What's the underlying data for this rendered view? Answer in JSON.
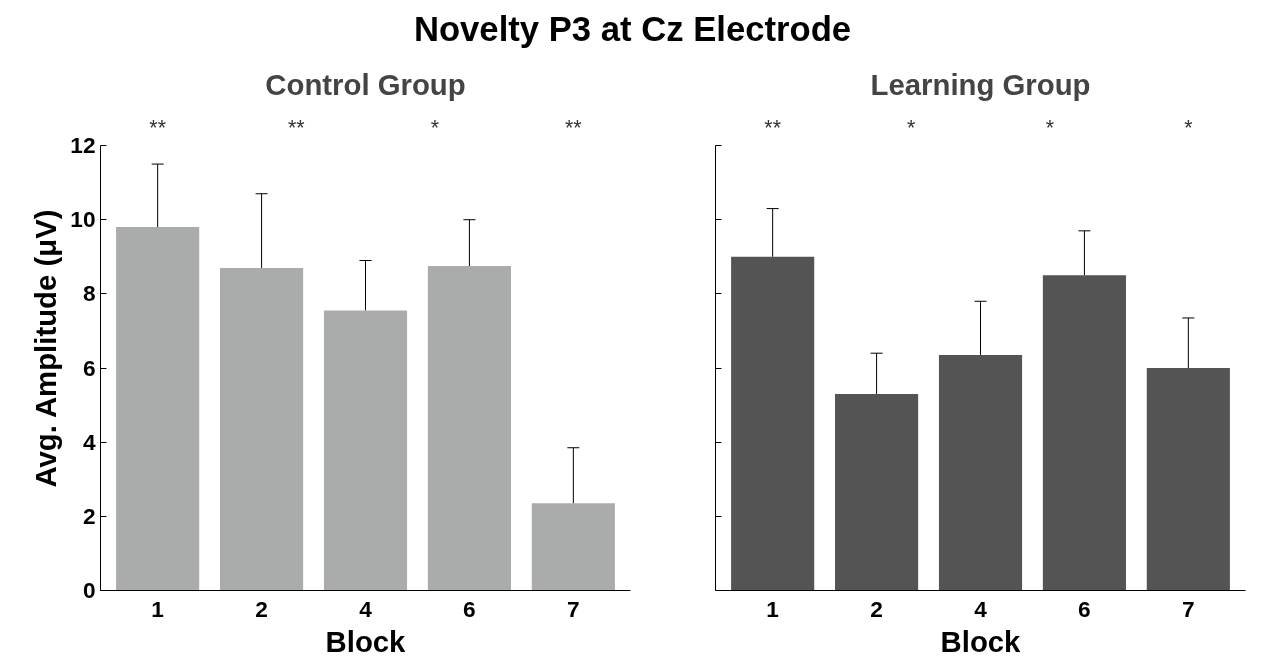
{
  "chart_data": [
    {
      "type": "bar",
      "title": "Novelty P3 at Cz Electrode",
      "subtitle": "Control Group",
      "xlabel": "Block",
      "ylabel": "Avg. Amplitude (μV)",
      "categories": [
        "1",
        "2",
        "4",
        "6",
        "7"
      ],
      "values": [
        9.8,
        8.7,
        7.55,
        8.75,
        2.35
      ],
      "color": "#aaacab",
      "errors": [
        [
          9.8,
          11.5
        ],
        [
          8.7,
          10.7
        ],
        [
          7.55,
          8.9
        ],
        [
          8.75,
          10.0
        ],
        [
          2.35,
          3.85
        ]
      ],
      "ylim": [
        0,
        12
      ],
      "yticks": [
        0,
        2,
        4,
        6,
        8,
        10,
        12
      ],
      "grid": false,
      "annotations": [
        "**",
        "**",
        "*",
        "**"
      ]
    },
    {
      "type": "bar",
      "subtitle": "Learning Group",
      "xlabel": "Block",
      "categories": [
        "1",
        "2",
        "4",
        "6",
        "7"
      ],
      "values": [
        9.0,
        5.3,
        6.35,
        8.5,
        6.0
      ],
      "color": "#545454",
      "errors": [
        [
          9.0,
          10.3
        ],
        [
          5.3,
          6.4
        ],
        [
          6.35,
          7.8
        ],
        [
          8.5,
          9.7
        ],
        [
          6.0,
          7.35
        ]
      ],
      "ylim": [
        0,
        12
      ],
      "yticks": [
        0,
        2,
        4,
        6,
        8,
        10,
        12
      ],
      "grid": false,
      "tick_labels": "x",
      "annotations": [
        "**",
        "*",
        "*",
        "*"
      ]
    }
  ]
}
